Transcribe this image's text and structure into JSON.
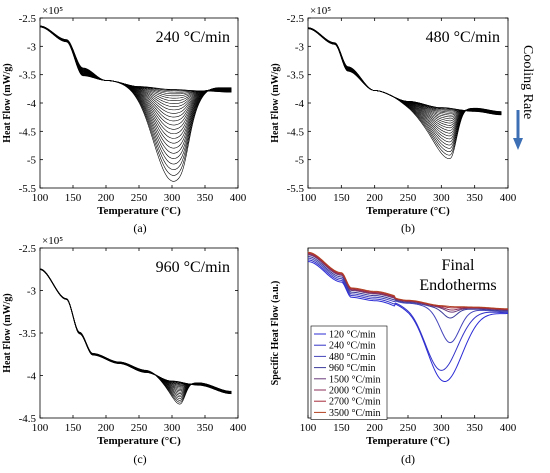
{
  "chart_data": [
    {
      "id": "a",
      "type": "line",
      "caption": "(a)",
      "annotation": "240 °C/min",
      "xlabel": "Temperature (°C)",
      "ylabel": "Heat Flow (mW/g)",
      "y_multiplier": "×10⁵",
      "xlim": [
        100,
        400
      ],
      "ylim": [
        -550000,
        -250000
      ],
      "xticks": [
        100,
        150,
        200,
        250,
        300,
        350,
        400
      ],
      "yticks": [
        -550000,
        -500000,
        -450000,
        -400000,
        -350000,
        -300000,
        -250000
      ],
      "ytick_labels": [
        "-5.5",
        "-5",
        "-4.5",
        "-4",
        "-3.5",
        "-3",
        "-2.5"
      ],
      "series_count": 26,
      "baseline": [
        [
          100,
          -265000
        ],
        [
          140,
          -290000
        ],
        [
          165,
          -345000
        ],
        [
          200,
          -360000
        ],
        [
          250,
          -368000
        ],
        [
          300,
          -372000
        ],
        [
          350,
          -375000
        ],
        [
          390,
          -377000
        ]
      ],
      "variation": {
        "x": [
          100,
          140,
          165,
          200,
          250,
          300,
          350,
          390
        ],
        "dy": [
          2000,
          4000,
          14000,
          0,
          6000,
          8000,
          8000,
          8000
        ]
      },
      "peak": {
        "center": 300,
        "width_left": 28,
        "width_right": 22,
        "depth_min": 0,
        "depth_max": 168000
      },
      "shoulder": {
        "center": 318,
        "width": 8,
        "depth_max": 22000
      }
    },
    {
      "id": "b",
      "type": "line",
      "caption": "(b)",
      "annotation": "480 °C/min",
      "xlabel": "Temperature (°C)",
      "ylabel": "Heat Flow (mW/g)",
      "y_multiplier": "×10⁵",
      "xlim": [
        100,
        400
      ],
      "ylim": [
        -550000,
        -250000
      ],
      "xticks": [
        100,
        150,
        200,
        250,
        300,
        350,
        400
      ],
      "yticks": [
        -550000,
        -500000,
        -450000,
        -400000,
        -350000,
        -300000,
        -250000
      ],
      "ytick_labels": [
        "-5.5",
        "-5",
        "-4.5",
        "-4",
        "-3.5",
        "-3",
        "-2.5"
      ],
      "series_count": 24,
      "baseline": [
        [
          100,
          -268000
        ],
        [
          140,
          -295000
        ],
        [
          160,
          -340000
        ],
        [
          200,
          -378000
        ],
        [
          250,
          -395000
        ],
        [
          300,
          -405000
        ],
        [
          350,
          -412000
        ],
        [
          390,
          -418000
        ]
      ],
      "variation": {
        "x": [
          100,
          140,
          160,
          200,
          250,
          300,
          350,
          390
        ],
        "dy": [
          2000,
          3000,
          8000,
          0,
          4000,
          6000,
          6000,
          6000
        ]
      },
      "peak": {
        "center": 313,
        "width_left": 22,
        "width_right": 10,
        "depth_min": 0,
        "depth_max": 92000
      },
      "shoulder": {
        "center": 272,
        "width": 20,
        "depth_max": 25000
      }
    },
    {
      "id": "c",
      "type": "line",
      "caption": "(c)",
      "annotation": "960 °C/min",
      "xlabel": "Temperature (°C)",
      "ylabel": "Heat Flow (mW/g)",
      "y_multiplier": "×10⁵",
      "xlim": [
        100,
        400
      ],
      "ylim": [
        -450000,
        -250000
      ],
      "xticks": [
        100,
        150,
        200,
        250,
        300,
        350,
        400
      ],
      "yticks": [
        -450000,
        -400000,
        -350000,
        -300000,
        -250000
      ],
      "ytick_labels": [
        "-4.5",
        "-4",
        "-3.5",
        "-3",
        "-2.5"
      ],
      "series_count": 20,
      "baseline": [
        [
          100,
          -275000
        ],
        [
          140,
          -310000
        ],
        [
          160,
          -350000
        ],
        [
          180,
          -375000
        ],
        [
          220,
          -385000
        ],
        [
          260,
          -395000
        ],
        [
          300,
          -405000
        ],
        [
          340,
          -410000
        ],
        [
          390,
          -420000
        ]
      ],
      "variation": {
        "x": [
          100,
          140,
          160,
          180,
          220,
          260,
          300,
          340,
          390
        ],
        "dy": [
          1000,
          1000,
          2000,
          2000,
          2000,
          3000,
          3000,
          3000,
          3000
        ]
      },
      "peak": {
        "center": 312,
        "width_left": 12,
        "width_right": 8,
        "depth_min": 0,
        "depth_max": 28000
      },
      "shoulder": {
        "center": 290,
        "width": 12,
        "depth_max": 6000
      }
    },
    {
      "id": "d",
      "type": "line",
      "caption": "(d)",
      "annotation": [
        "Final",
        "Endotherms"
      ],
      "xlabel": "Temperature (°C)",
      "ylabel": "Specific Heat Flow (a.u.)",
      "xlim": [
        100,
        400
      ],
      "ylim": [
        0,
        1
      ],
      "xticks": [
        100,
        150,
        200,
        250,
        300,
        350,
        400
      ],
      "baseline": [
        [
          100,
          0.95
        ],
        [
          150,
          0.83
        ],
        [
          165,
          0.74
        ],
        [
          200,
          0.72
        ],
        [
          250,
          0.68
        ],
        [
          300,
          0.65
        ],
        [
          350,
          0.64
        ],
        [
          400,
          0.63
        ]
      ],
      "series": [
        {
          "name": "120 °C/min",
          "color": "#2b2bd6",
          "peak": {
            "center": 305,
            "width": 26,
            "depth": 0.42
          },
          "offset": -0.03
        },
        {
          "name": "240 °C/min",
          "color": "#3434c8",
          "peak": {
            "center": 300,
            "width": 24,
            "depth": 0.36
          },
          "offset": -0.02
        },
        {
          "name": "480 °C/min",
          "color": "#4444bb",
          "peak": {
            "center": 313,
            "width": 14,
            "depth": 0.2
          },
          "offset": -0.01
        },
        {
          "name": "960 °C/min",
          "color": "#3a3a9a",
          "peak": {
            "center": 313,
            "width": 10,
            "depth": 0.06
          },
          "offset": 0.0
        },
        {
          "name": "1500 °C/min",
          "color": "#6a3a7a",
          "peak": {
            "center": 315,
            "width": 10,
            "depth": 0.03
          },
          "offset": 0.01
        },
        {
          "name": "2000 °C/min",
          "color": "#8a2f5a",
          "peak": {
            "center": 315,
            "width": 10,
            "depth": 0.02
          },
          "offset": 0.015
        },
        {
          "name": "2700 °C/min",
          "color": "#a62c3a",
          "peak": {
            "center": 315,
            "width": 10,
            "depth": 0.01
          },
          "offset": 0.02
        },
        {
          "name": "3500 °C/min",
          "color": "#b24020",
          "peak": {
            "center": 315,
            "width": 10,
            "depth": 0.005
          },
          "offset": 0.025
        }
      ]
    }
  ],
  "side_label": "Cooling Rate",
  "side_arrow_color": "#3d6fb5"
}
